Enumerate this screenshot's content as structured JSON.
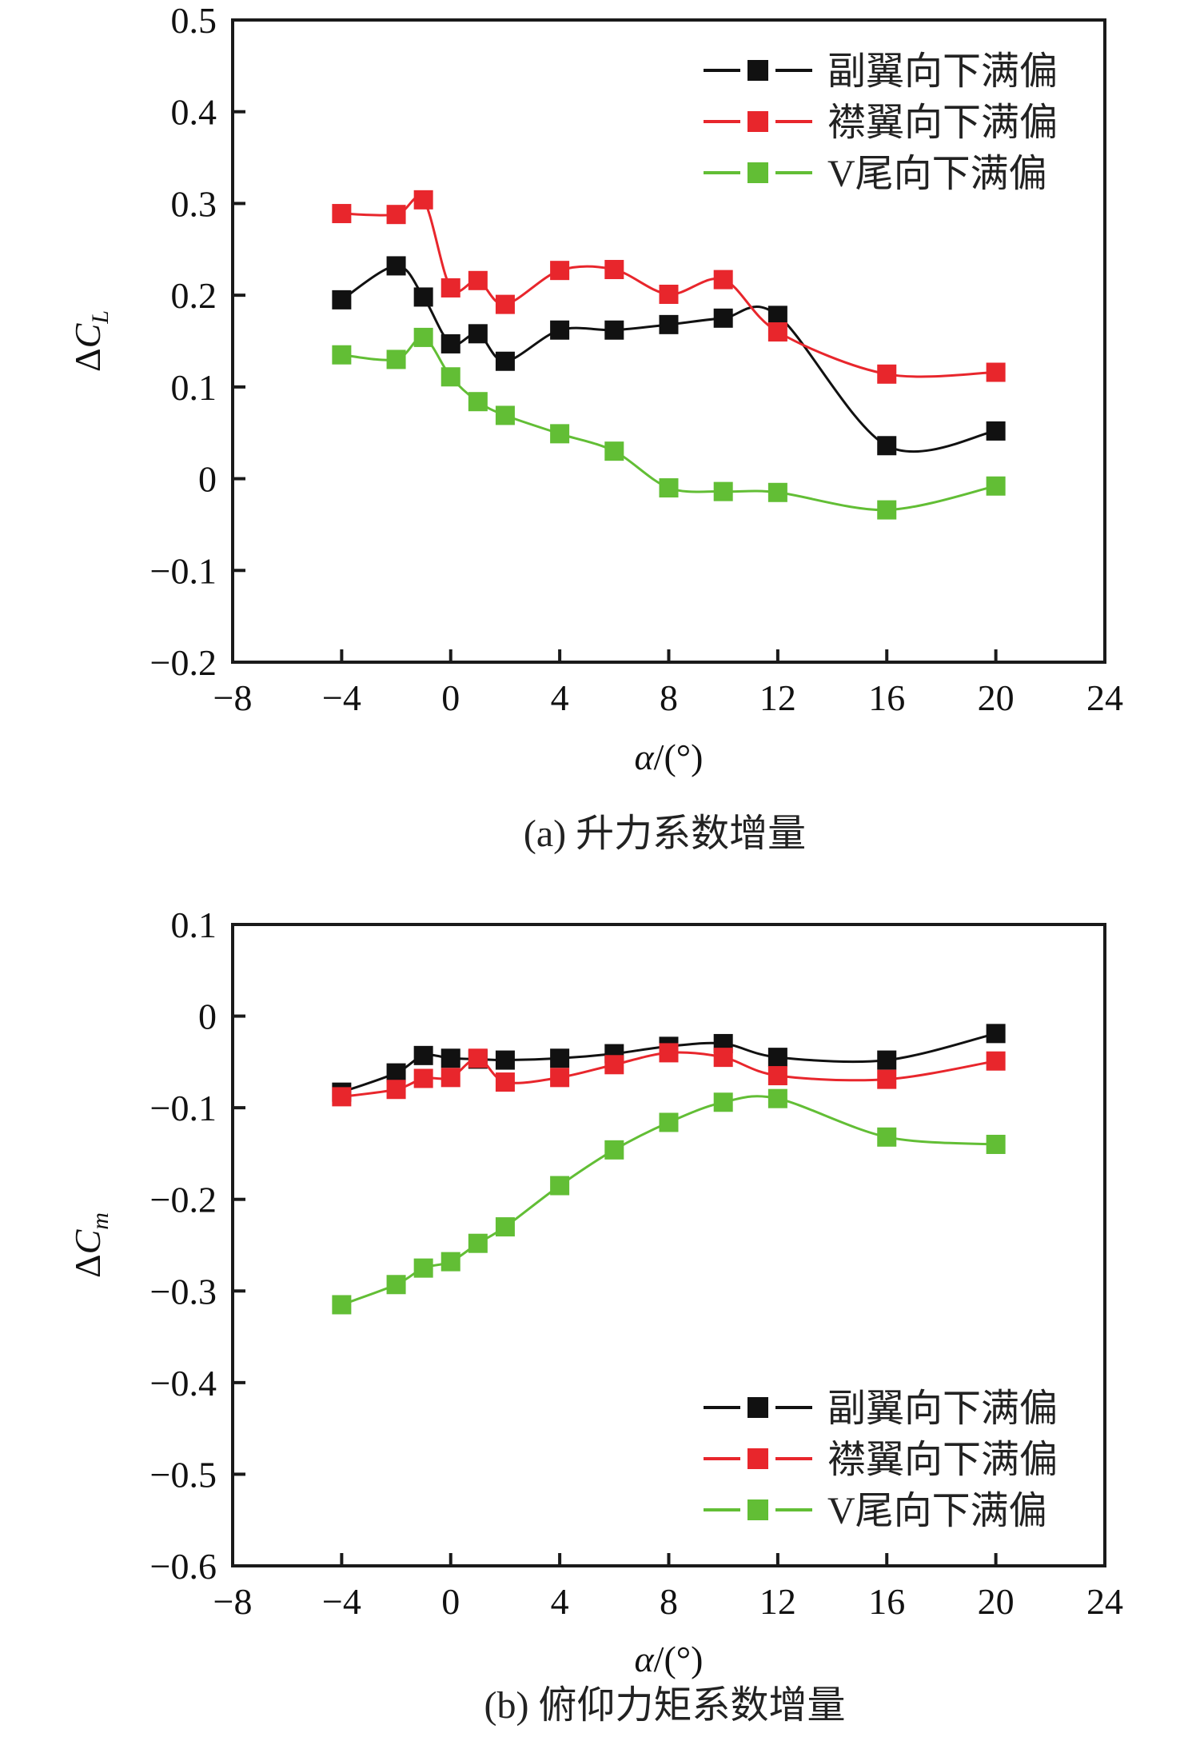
{
  "chart_data": [
    {
      "type": "line",
      "panel": "a",
      "title": "",
      "caption": "(a) 升力系数增量",
      "xlabel": "α/(°)",
      "ylabel": "ΔC",
      "ylabel_sub": "L",
      "xlim": [
        -8,
        24
      ],
      "ylim": [
        -0.2,
        0.5
      ],
      "xticks": [
        -8,
        -4,
        0,
        4,
        8,
        12,
        16,
        20,
        24
      ],
      "xtick_labels": [
        "−8",
        "−4",
        "0",
        "4",
        "8",
        "12",
        "16",
        "20",
        "24"
      ],
      "yticks": [
        -0.2,
        -0.1,
        0,
        0.1,
        0.2,
        0.3,
        0.4,
        0.5
      ],
      "ytick_labels": [
        "−0.2",
        "−0.1",
        "0",
        "0.1",
        "0.2",
        "0.3",
        "0.4",
        "0.5"
      ],
      "grid": false,
      "legend_position": "top-right",
      "series": [
        {
          "name": "副翼向下满偏",
          "color": "#111111",
          "x": [
            -4,
            -2,
            -1,
            0,
            1,
            2,
            4,
            6,
            8,
            10,
            12,
            16,
            20
          ],
          "y": [
            0.195,
            0.232,
            0.198,
            0.147,
            0.158,
            0.128,
            0.162,
            0.162,
            0.168,
            0.175,
            0.178,
            0.036,
            0.052
          ]
        },
        {
          "name": "襟翼向下满偏",
          "color": "#e8262c",
          "x": [
            -4,
            -2,
            -1,
            0,
            1,
            2,
            4,
            6,
            8,
            10,
            12,
            16,
            20
          ],
          "y": [
            0.289,
            0.288,
            0.304,
            0.208,
            0.216,
            0.19,
            0.227,
            0.228,
            0.201,
            0.217,
            0.16,
            0.114,
            0.116
          ]
        },
        {
          "name": "V尾向下满偏",
          "color": "#62be35",
          "x": [
            -4,
            -2,
            -1,
            0,
            1,
            2,
            4,
            6,
            8,
            10,
            12,
            16,
            20
          ],
          "y": [
            0.135,
            0.13,
            0.154,
            0.111,
            0.084,
            0.069,
            0.049,
            0.03,
            -0.01,
            -0.014,
            -0.015,
            -0.034,
            -0.008
          ]
        }
      ]
    },
    {
      "type": "line",
      "panel": "b",
      "title": "",
      "caption": "(b) 俯仰力矩系数增量",
      "xlabel": "α/(°)",
      "ylabel": "ΔC",
      "ylabel_sub": "m",
      "xlim": [
        -8,
        24
      ],
      "ylim": [
        -0.6,
        0.1
      ],
      "xticks": [
        -8,
        -4,
        0,
        4,
        8,
        12,
        16,
        20,
        24
      ],
      "xtick_labels": [
        "−8",
        "−4",
        "0",
        "4",
        "8",
        "12",
        "16",
        "20",
        "24"
      ],
      "yticks": [
        -0.6,
        -0.5,
        -0.4,
        -0.3,
        -0.2,
        -0.1,
        0,
        0.1
      ],
      "ytick_labels": [
        "−0.6",
        "−0.5",
        "−0.4",
        "−0.3",
        "−0.2",
        "−0.1",
        "0",
        "0.1"
      ],
      "grid": false,
      "legend_position": "bottom-right",
      "series": [
        {
          "name": "副翼向下满偏",
          "color": "#111111",
          "x": [
            -4,
            -2,
            -1,
            0,
            1,
            2,
            4,
            6,
            8,
            10,
            12,
            16,
            20
          ],
          "y": [
            -0.083,
            -0.062,
            -0.043,
            -0.046,
            -0.047,
            -0.048,
            -0.046,
            -0.041,
            -0.033,
            -0.03,
            -0.045,
            -0.048,
            -0.019
          ]
        },
        {
          "name": "襟翼向下满偏",
          "color": "#e8262c",
          "x": [
            -4,
            -2,
            -1,
            0,
            1,
            2,
            4,
            6,
            8,
            10,
            12,
            16,
            20
          ],
          "y": [
            -0.088,
            -0.08,
            -0.068,
            -0.067,
            -0.046,
            -0.072,
            -0.067,
            -0.053,
            -0.04,
            -0.045,
            -0.065,
            -0.069,
            -0.049
          ]
        },
        {
          "name": "V尾向下满偏",
          "color": "#62be35",
          "x": [
            -4,
            -2,
            -1,
            0,
            1,
            2,
            4,
            6,
            8,
            10,
            12,
            16,
            20
          ],
          "y": [
            -0.315,
            -0.293,
            -0.275,
            -0.268,
            -0.248,
            -0.23,
            -0.185,
            -0.146,
            -0.116,
            -0.094,
            -0.09,
            -0.132,
            -0.14
          ]
        }
      ]
    }
  ]
}
